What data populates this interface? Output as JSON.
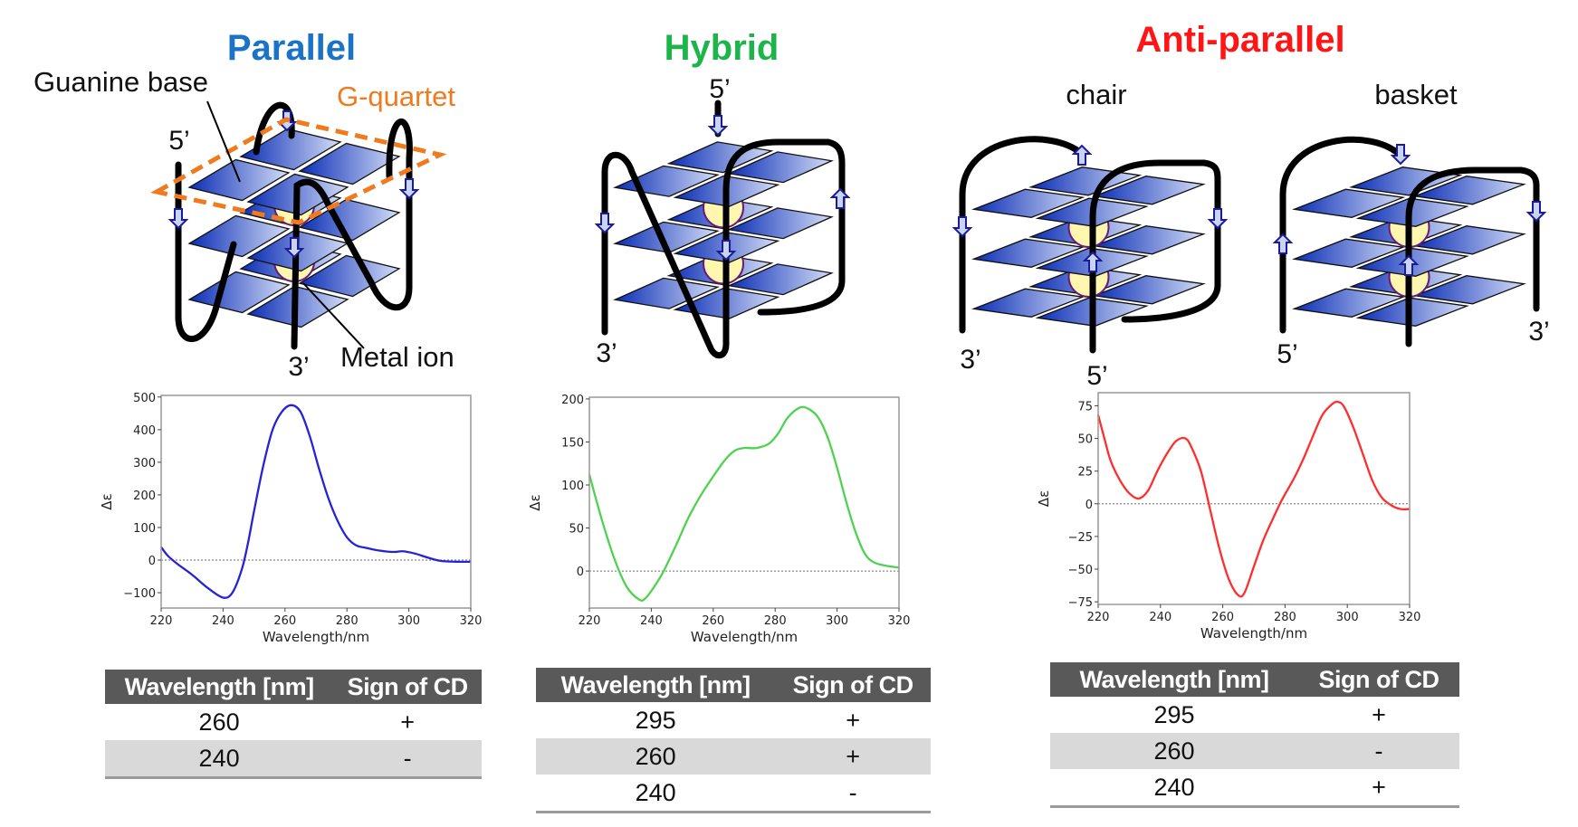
{
  "colors": {
    "parallel": "#1a73c6",
    "hybrid": "#1db54b",
    "antiparallel": "#ff1515",
    "gquartet": "#f07a1e",
    "tile_dark": "#0a2db5",
    "tile_light": "#d4ddf7",
    "ion": "#fff7b0",
    "ion_stroke": "#6a1b7a",
    "arrow": "#1a1a9c"
  },
  "panels": {
    "parallel": {
      "title": "Parallel",
      "guanine_label": "Guanine base",
      "gquartet_label": "G-quartet",
      "metal_label": "Metal ion",
      "five_prime": "5’",
      "three_prime": "3’"
    },
    "hybrid": {
      "title": "Hybrid",
      "five_prime": "5’",
      "three_prime": "3’"
    },
    "antiparallel": {
      "title": "Anti-parallel",
      "chair": {
        "label": "chair",
        "five_prime": "5’",
        "three_prime": "3’"
      },
      "basket": {
        "label": "basket",
        "five_prime": "5’",
        "three_prime": "3’"
      }
    }
  },
  "chart_data": [
    {
      "type": "line",
      "xlabel": "Wavelength/nm",
      "ylabel": "Δε",
      "xlim": [
        220,
        320
      ],
      "ylim": [
        -147,
        505
      ],
      "xticks": [
        220,
        240,
        260,
        280,
        300,
        320
      ],
      "yticks": [
        -100,
        0,
        100,
        200,
        300,
        400,
        500
      ],
      "zero_line": "dotted",
      "color": "#2424d6",
      "x": [
        220,
        222,
        225,
        230,
        235,
        240,
        243,
        246,
        248,
        250,
        253,
        256,
        259,
        262,
        265,
        268,
        271,
        274,
        277,
        280,
        283,
        286,
        290,
        295,
        298,
        302,
        306,
        310,
        315,
        320
      ],
      "y": [
        40,
        15,
        -10,
        -45,
        -85,
        -115,
        -100,
        -30,
        50,
        150,
        290,
        400,
        455,
        475,
        455,
        380,
        280,
        190,
        120,
        70,
        45,
        38,
        30,
        25,
        27,
        20,
        8,
        -2,
        -5,
        -5
      ]
    },
    {
      "type": "line",
      "xlabel": "Wavelength/nm",
      "ylabel": "Δε",
      "xlim": [
        220,
        320
      ],
      "ylim": [
        -43,
        202
      ],
      "xticks": [
        220,
        240,
        260,
        280,
        300,
        320
      ],
      "yticks": [
        0,
        50,
        100,
        150,
        200
      ],
      "zero_line": "dotted",
      "color": "#4fd24f",
      "x": [
        220,
        224,
        228,
        232,
        236,
        238,
        241,
        244,
        248,
        252,
        256,
        260,
        264,
        267,
        270,
        274,
        278,
        281,
        284,
        288,
        291,
        294,
        297,
        300,
        303,
        306,
        309,
        312,
        316,
        320
      ],
      "y": [
        112,
        60,
        15,
        -18,
        -33,
        -32,
        -18,
        0,
        30,
        62,
        88,
        110,
        130,
        140,
        143,
        143,
        148,
        160,
        178,
        190,
        188,
        178,
        155,
        120,
        80,
        45,
        20,
        10,
        6,
        4
      ]
    },
    {
      "type": "line",
      "xlabel": "Wavelength/nm",
      "ylabel": "Δε",
      "xlim": [
        220,
        320
      ],
      "ylim": [
        -77,
        85
      ],
      "xticks": [
        220,
        240,
        260,
        280,
        300,
        320
      ],
      "yticks": [
        -75,
        -50,
        -25,
        0,
        25,
        50,
        75
      ],
      "zero_line": "dotted",
      "color": "#ff2d2d",
      "x": [
        220,
        222,
        224,
        227,
        230,
        233,
        236,
        239,
        242,
        245,
        248,
        250,
        253,
        256,
        259,
        262,
        265,
        267,
        270,
        273,
        276,
        279,
        283,
        286,
        289,
        292,
        295,
        297,
        299,
        302,
        305,
        308,
        311,
        314,
        317,
        320
      ],
      "y": [
        68,
        50,
        33,
        18,
        8,
        4,
        10,
        25,
        38,
        48,
        50,
        43,
        25,
        -5,
        -35,
        -58,
        -70,
        -68,
        -48,
        -28,
        -12,
        3,
        20,
        35,
        52,
        68,
        76,
        78,
        74,
        58,
        38,
        18,
        5,
        -1,
        -4,
        -4
      ]
    }
  ],
  "tables": [
    {
      "headers": [
        "Wavelength [nm]",
        "Sign of CD"
      ],
      "rows": [
        [
          "260",
          "+"
        ],
        [
          "240",
          "-"
        ]
      ]
    },
    {
      "headers": [
        "Wavelength [nm]",
        "Sign of CD"
      ],
      "rows": [
        [
          "295",
          "+"
        ],
        [
          "260",
          "+"
        ],
        [
          "240",
          "-"
        ]
      ]
    },
    {
      "headers": [
        "Wavelength [nm]",
        "Sign of CD"
      ],
      "rows": [
        [
          "295",
          "+"
        ],
        [
          "260",
          "-"
        ],
        [
          "240",
          "+"
        ]
      ]
    }
  ]
}
